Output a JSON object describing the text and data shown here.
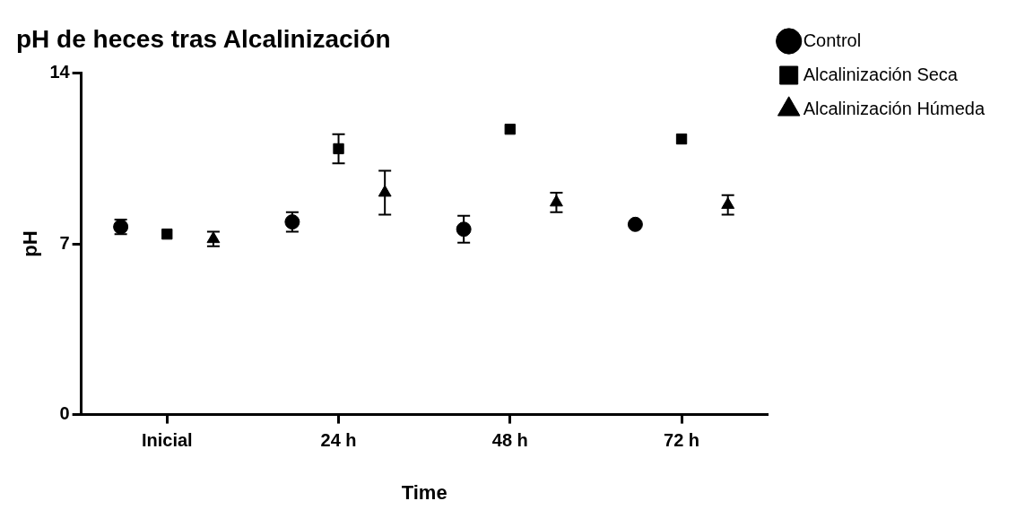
{
  "chart_data": {
    "type": "scatter",
    "title": "pH de heces tras Alcalinización",
    "xlabel": "Time",
    "ylabel": "pH",
    "categories": [
      "Inicial",
      "24 h",
      "48 h",
      "72 h"
    ],
    "ylim": [
      0,
      14
    ],
    "yticks": [
      0,
      7,
      14
    ],
    "grid": false,
    "legend": "right",
    "series": [
      {
        "name": "Control",
        "color": "#000000",
        "marker": "circle",
        "values": [
          7.7,
          7.9,
          7.6,
          7.8
        ],
        "errors": [
          0.3,
          0.4,
          0.55,
          null
        ]
      },
      {
        "name": "Alcalinización Seca",
        "color": "#000000",
        "marker": "square",
        "values": [
          7.4,
          10.9,
          11.7,
          11.3
        ],
        "errors": [
          null,
          0.6,
          null,
          null
        ]
      },
      {
        "name": "Alcalinización Húmeda",
        "color": "#000000",
        "marker": "triangle",
        "values": [
          7.2,
          9.1,
          8.7,
          8.6
        ],
        "errors": [
          0.3,
          0.9,
          0.4,
          0.4
        ]
      }
    ]
  }
}
